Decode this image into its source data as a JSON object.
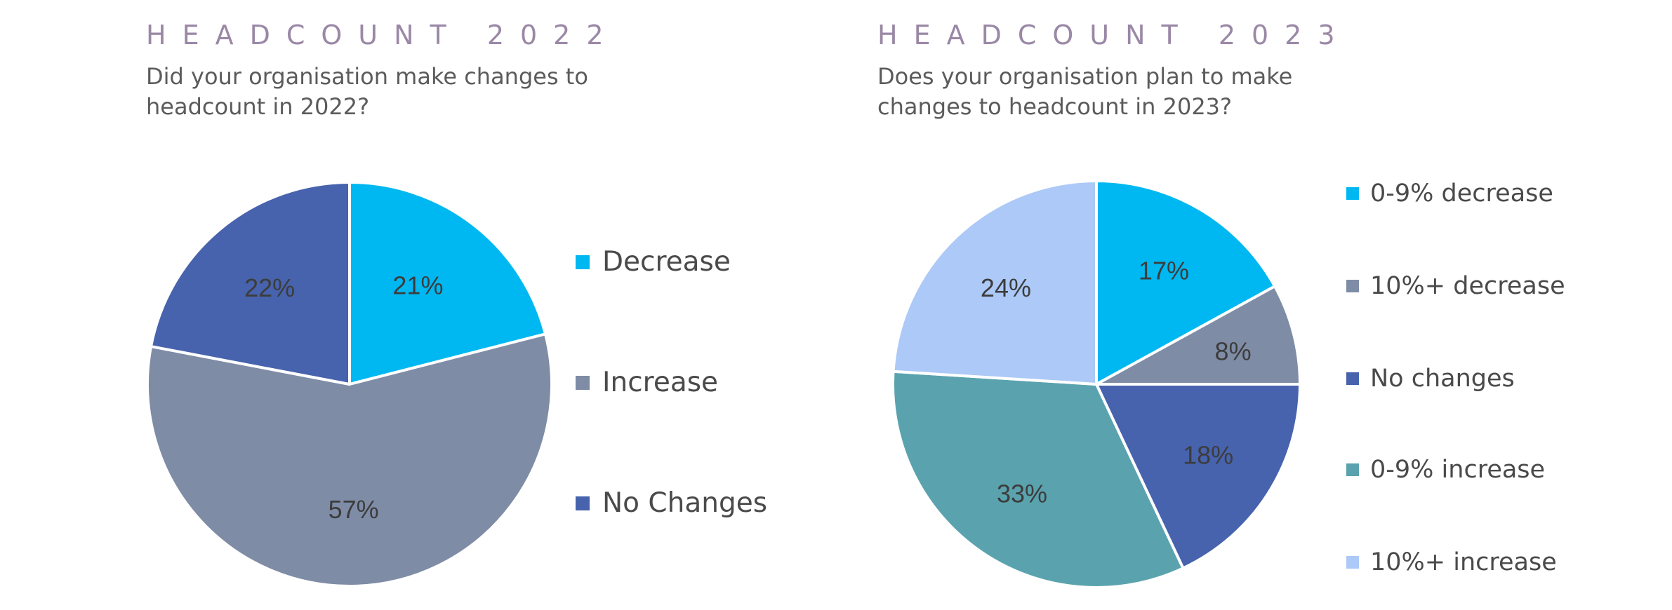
{
  "colors": {
    "heading": "#9a88a6",
    "question": "#5b5b5b",
    "bright_blue": "#00b8f1",
    "slate_gray": "#7f8ca6",
    "royal_blue": "#4763ad",
    "teal": "#5aa3ae",
    "light_blue": "#acc9f7"
  },
  "left": {
    "heading": "HEADCOUNT 2022",
    "question": "Did your organisation make changes to headcount in 2022?"
  },
  "right": {
    "heading": "HEADCOUNT 2023",
    "question": "Does your organisation plan to make changes to headcount in 2023?"
  },
  "chart_data": [
    {
      "type": "pie",
      "title": "HEADCOUNT 2022",
      "subtitle": "Did your organisation make changes to headcount in 2022?",
      "legend_position": "right",
      "slices": [
        {
          "label": "Decrease",
          "value": 21,
          "display": "21%",
          "color": "#00b8f1"
        },
        {
          "label": "Increase",
          "value": 57,
          "display": "57%",
          "color": "#7f8ca6"
        },
        {
          "label": "No Changes",
          "value": 22,
          "display": "22%",
          "color": "#4763ad"
        }
      ]
    },
    {
      "type": "pie",
      "title": "HEADCOUNT 2023",
      "subtitle": "Does your organisation plan to make changes to headcount in 2023?",
      "legend_position": "right",
      "slices": [
        {
          "label": "0-9% decrease",
          "value": 17,
          "display": "17%",
          "color": "#00b8f1"
        },
        {
          "label": "10%+ decrease",
          "value": 8,
          "display": "8%",
          "color": "#7f8ca6"
        },
        {
          "label": "No changes",
          "value": 18,
          "display": "18%",
          "color": "#4763ad"
        },
        {
          "label": "0-9% increase",
          "value": 33,
          "display": "33%",
          "color": "#5aa3ae"
        },
        {
          "label": "10%+ increase",
          "value": 24,
          "display": "24%",
          "color": "#acc9f7"
        }
      ]
    }
  ]
}
